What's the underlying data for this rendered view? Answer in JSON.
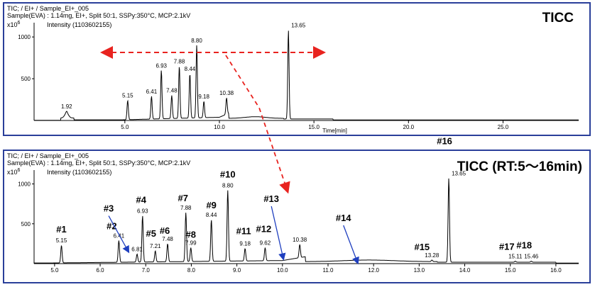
{
  "colors": {
    "frame": "#2a3f9a",
    "arrow": "#e8231f",
    "blue_arrow": "#1f3fbf",
    "trace": "#000000"
  },
  "chart_data": [
    {
      "type": "line",
      "panel_title": "TICC",
      "header_line1": "TIC; / EI+ / Sample_EI+_005",
      "header_line2": "Sample(EVA) : 1.14mg, EI+, Split 50:1, SSPy:350°C, MCP:2.1kV",
      "y_unit_base": "x10",
      "y_unit_exp": "6",
      "ylabel": "Intensity (1103602155)",
      "xlabel": "Time[min]",
      "xlim": [
        0.2,
        29.0
      ],
      "ylim": [
        0,
        1103
      ],
      "xticks": [
        5.0,
        10.0,
        15.0,
        20.0,
        25.0
      ],
      "xtick_labels": [
        "5.0",
        "10.0",
        "15.0",
        "20.0",
        "25.0"
      ],
      "yticks": [
        500,
        1000
      ],
      "ytick_labels": [
        "500",
        "1000"
      ],
      "peaks": [
        {
          "x": 1.92,
          "y": 110,
          "label": "1.92"
        },
        {
          "x": 5.15,
          "y": 240,
          "label": "5.15"
        },
        {
          "x": 6.41,
          "y": 290,
          "label": "6.41"
        },
        {
          "x": 6.93,
          "y": 600,
          "label": "6.93"
        },
        {
          "x": 7.48,
          "y": 300,
          "label": "7.48"
        },
        {
          "x": 7.88,
          "y": 650,
          "label": "7.88"
        },
        {
          "x": 8.44,
          "y": 560,
          "label": "8.44"
        },
        {
          "x": 8.8,
          "y": 900,
          "label": "8.80"
        },
        {
          "x": 9.18,
          "y": 230,
          "label": "9.18"
        },
        {
          "x": 10.38,
          "y": 270,
          "label": "10.38"
        },
        {
          "x": 13.65,
          "y": 1080,
          "label": "13.65"
        }
      ]
    },
    {
      "type": "line",
      "panel_title": "TICC (RT:5〜16min)",
      "header_line1": "TIC; / EI+ / Sample_EI+_005",
      "header_line2": "Sample(EVA) : 1.14mg, EI+, Split 50:1, SSPy:350°C, MCP:2.1kV",
      "y_unit_base": "x10",
      "y_unit_exp": "6",
      "ylabel": "Intensity (1103602155)",
      "xlabel": "",
      "xlim": [
        4.55,
        16.5
      ],
      "ylim": [
        0,
        1103
      ],
      "xticks": [
        5.0,
        6.0,
        7.0,
        8.0,
        9.0,
        10.0,
        11.0,
        12.0,
        13.0,
        14.0,
        15.0,
        16.0
      ],
      "xtick_labels": [
        "5.0",
        "6.0",
        "7.0",
        "8.0",
        "9.0",
        "10.0",
        "11.0",
        "12.0",
        "13.0",
        "14.0",
        "15.0",
        "16.0"
      ],
      "yticks": [
        500,
        1000
      ],
      "ytick_labels": [
        "500",
        "1000"
      ],
      "peaks": [
        {
          "x": 5.15,
          "y": 230,
          "label": "5.15",
          "id": "#1"
        },
        {
          "x": 6.41,
          "y": 290,
          "label": "6.41",
          "id": "#2"
        },
        {
          "x": 6.81,
          "y": 120,
          "label": "6.81",
          "id": "#3"
        },
        {
          "x": 6.93,
          "y": 600,
          "label": "6.93",
          "id": "#4"
        },
        {
          "x": 7.21,
          "y": 160,
          "label": "7.21",
          "id": "#5"
        },
        {
          "x": 7.48,
          "y": 250,
          "label": "7.48",
          "id": "#6"
        },
        {
          "x": 7.88,
          "y": 640,
          "label": "7.88",
          "id": "#7"
        },
        {
          "x": 7.99,
          "y": 200,
          "label": "7.99",
          "id": "#8"
        },
        {
          "x": 8.44,
          "y": 550,
          "label": "8.44",
          "id": "#9"
        },
        {
          "x": 8.8,
          "y": 920,
          "label": "8.80",
          "id": "#10"
        },
        {
          "x": 9.18,
          "y": 190,
          "label": "9.18",
          "id": "#11"
        },
        {
          "x": 9.62,
          "y": 200,
          "label": "9.62",
          "id": "#12"
        },
        {
          "x": 10.38,
          "y": 240,
          "label": "10.38",
          "id": "#13"
        },
        {
          "x": 11.65,
          "y": 0,
          "label": "",
          "id": "#14"
        },
        {
          "x": 13.28,
          "y": 45,
          "label": "13.28",
          "id": "#15"
        },
        {
          "x": 13.65,
          "y": 1070,
          "label": "13.65",
          "id": "#16"
        },
        {
          "x": 15.11,
          "y": 30,
          "label": "15.11",
          "id": "#17"
        },
        {
          "x": 15.46,
          "y": 30,
          "label": "15.46",
          "id": "#18"
        }
      ]
    }
  ]
}
